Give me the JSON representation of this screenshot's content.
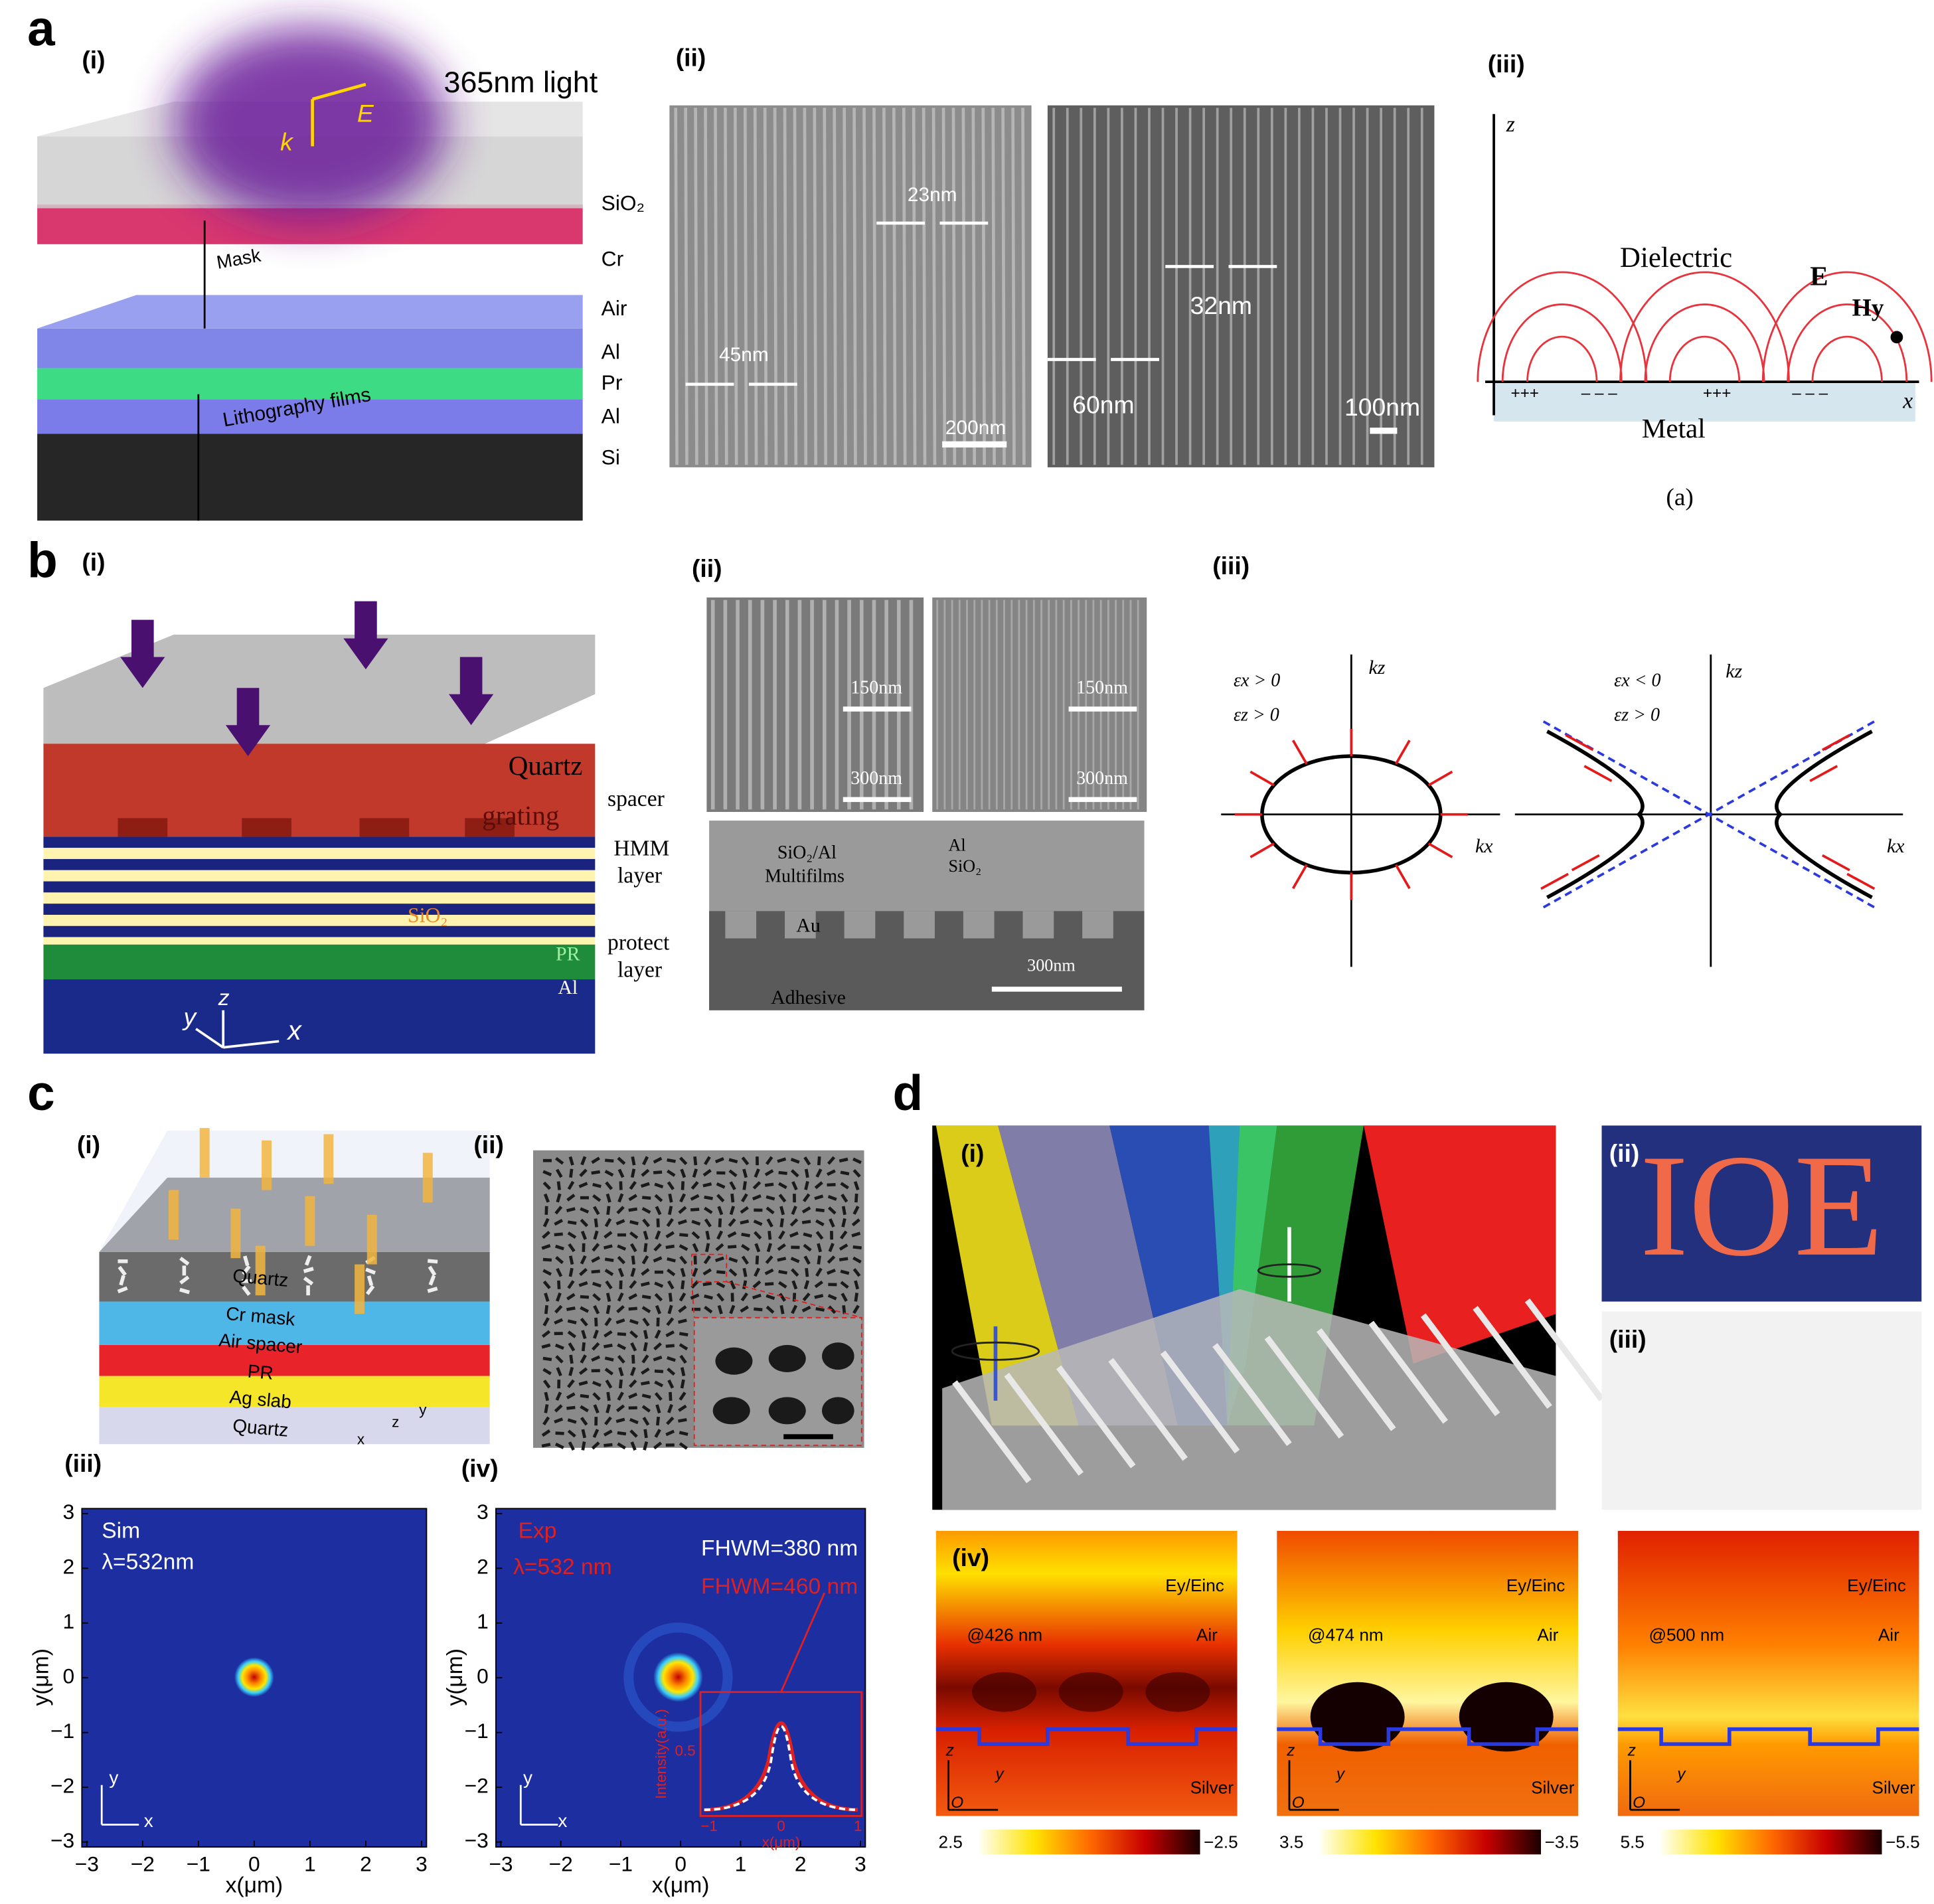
{
  "a": {
    "label": "a",
    "i": {
      "label": "(i)",
      "light": "365nm light",
      "k": "k",
      "E": "E",
      "mask": "Mask",
      "films": "Lithography films",
      "layers": [
        "SiO₂",
        "Cr",
        "Air",
        "Al",
        "Pr",
        "Al",
        "Si"
      ]
    },
    "ii": {
      "label": "(ii)",
      "left": {
        "dims": [
          "23nm",
          "45nm"
        ],
        "scale": "200nm"
      },
      "right": {
        "dims": [
          "32nm",
          "60nm"
        ],
        "scale": "100nm"
      }
    },
    "iii": {
      "label": "(iii)",
      "z": "z",
      "x": "x",
      "dielectric": "Dielectric",
      "E": "E",
      "H": "Hy",
      "metal": "Metal",
      "charges": [
        "+++",
        "– – –",
        "+++",
        "– – –"
      ],
      "caption": "(a)"
    }
  },
  "b": {
    "label": "b",
    "i": {
      "label": "(i)",
      "quartz": "Quartz",
      "grating": "grating",
      "spacer": "spacer",
      "hmm": [
        "HMM",
        "layer"
      ],
      "sio2": "SiO₂",
      "protect": [
        "protect",
        "layer"
      ],
      "pr": "PR",
      "al": "Al",
      "axes": [
        "y",
        "z",
        "x"
      ]
    },
    "ii": {
      "label": "(ii)",
      "scales": [
        "150nm",
        "300nm",
        "150nm",
        "300nm"
      ],
      "sio2al": "SiO₂/Al",
      "multifilms": "Multifilms",
      "al": "Al",
      "sio2": "SiO₂",
      "au": "Au",
      "adhesive": "Adhesive",
      "scale": "300nm"
    },
    "iii": {
      "label": "(iii)",
      "left": {
        "eps": [
          "εx > 0",
          "εz > 0"
        ],
        "kz": "kz",
        "kx": "kx"
      },
      "right": {
        "eps": [
          "εx < 0",
          "εz > 0"
        ],
        "kz": "kz",
        "kx": "kx"
      }
    }
  },
  "c": {
    "label": "c",
    "i": {
      "label": "(i)",
      "layers": [
        "Quartz",
        "Cr mask",
        "Air spacer",
        "PR",
        "Ag slab",
        "Quartz"
      ],
      "axes": [
        "z",
        "y",
        "x"
      ]
    },
    "ii": {
      "label": "(ii)"
    },
    "iii": {
      "label": "(iii)",
      "sim": "Sim",
      "lambda": "λ=532nm",
      "xlabel": "x(μm)",
      "ylabel": "y(μm)",
      "xticks": [
        "−3",
        "−2",
        "−1",
        "0",
        "1",
        "2",
        "3"
      ],
      "yticks": [
        "3",
        "2",
        "1",
        "0",
        "−1",
        "−2",
        "−3"
      ],
      "axes": [
        "y",
        "x"
      ]
    },
    "iv": {
      "label": "(iv)",
      "exp": "Exp",
      "lambda": "λ=532 nm",
      "fwhm1": "FHWM=380 nm",
      "fwhm2": "FHWM=460 nm",
      "xlabel": "x(μm)",
      "ylabel": "y(μm)",
      "xticks": [
        "−3",
        "−2",
        "−1",
        "0",
        "1",
        "2",
        "3"
      ],
      "yticks": [
        "3",
        "2",
        "1",
        "0",
        "−1",
        "−2",
        "−3"
      ],
      "axes": [
        "y",
        "x"
      ],
      "inset": {
        "ylabel": "Intensity(a.u.)",
        "xlabel": "x(μm)",
        "yticks": [
          "0.5"
        ],
        "xticks": [
          "−1",
          "0",
          "1"
        ]
      }
    }
  },
  "d": {
    "label": "d",
    "i": {
      "label": "(i)"
    },
    "ii": {
      "label": "(ii)",
      "text": "IOE"
    },
    "iii": {
      "label": "(iii)"
    },
    "iv": {
      "label": "(iv)",
      "maps": [
        {
          "field": "Ey/Einc",
          "wl": "@426 nm",
          "air": "Air",
          "silver": "Silver",
          "axes": [
            "z",
            "O",
            "y"
          ],
          "range": [
            "2.5",
            "−2.5"
          ]
        },
        {
          "field": "Ey/Einc",
          "wl": "@474 nm",
          "air": "Air",
          "silver": "Silver",
          "axes": [
            "z",
            "O",
            "y"
          ],
          "range": [
            "3.5",
            "−3.5"
          ]
        },
        {
          "field": "Ey/Einc",
          "wl": "@500 nm",
          "air": "Air",
          "silver": "Silver",
          "axes": [
            "z",
            "O",
            "y"
          ],
          "range": [
            "5.5",
            "−5.5"
          ]
        }
      ]
    }
  }
}
